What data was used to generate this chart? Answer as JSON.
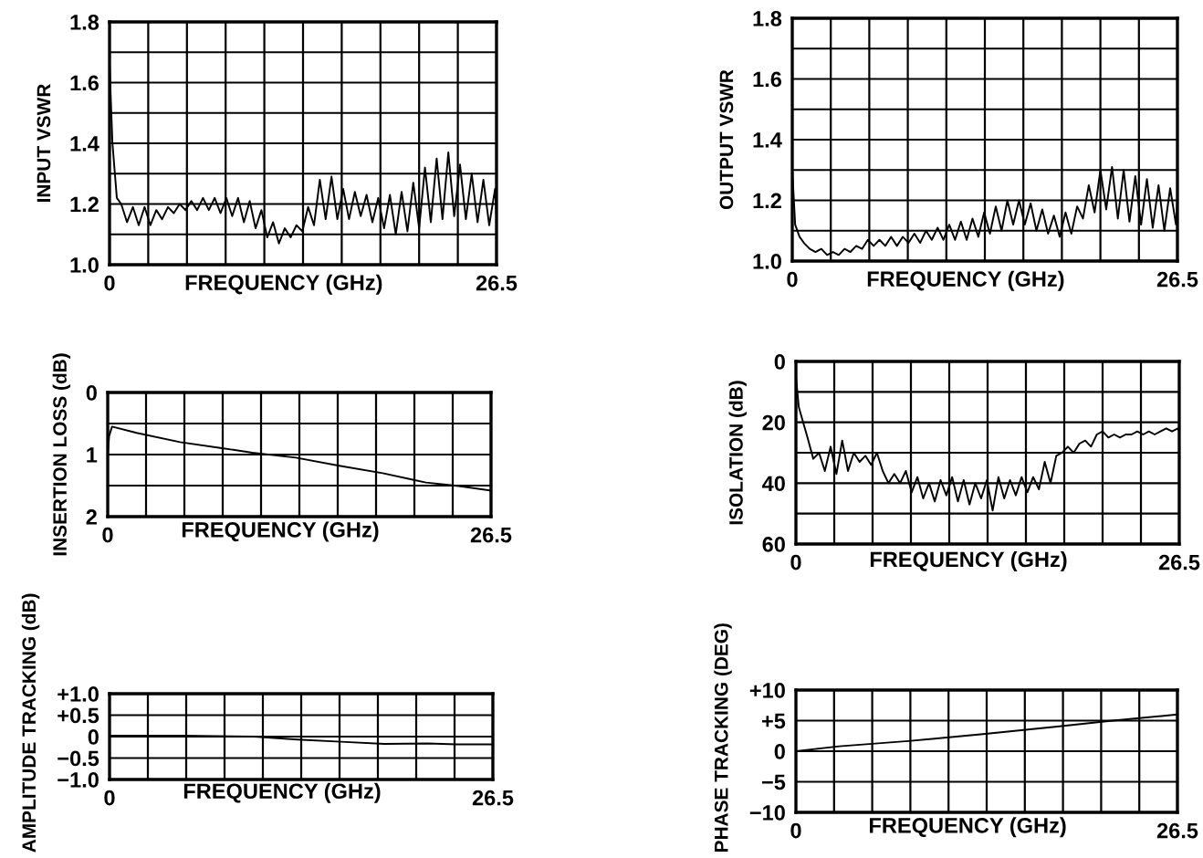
{
  "chart_data": [
    {
      "type": "line",
      "ylabel": "INPUT VSWR",
      "xlabel": "FREQUENCY (GHz)",
      "grid": true,
      "color": "#000000",
      "xlim": [
        0,
        26.5
      ],
      "ylim": [
        1.0,
        1.8
      ],
      "xticks": [
        0,
        {
          "value": 2.65,
          "label": null
        },
        {
          "value": 5.3,
          "label": null
        },
        {
          "value": 7.95,
          "label": null
        },
        {
          "value": 10.6,
          "label": null
        },
        {
          "value": 13.25,
          "label": null
        },
        {
          "value": 15.9,
          "label": null
        },
        {
          "value": 18.55,
          "label": null
        },
        {
          "value": 21.2,
          "label": null
        },
        {
          "value": 23.85,
          "label": null
        },
        26.5
      ],
      "yticks": [
        {
          "value": 1.0,
          "label": "1.0"
        },
        {
          "value": 1.1,
          "label": null
        },
        1.2,
        {
          "value": 1.3,
          "label": null
        },
        1.4,
        {
          "value": 1.5,
          "label": null
        },
        1.6,
        {
          "value": 1.7,
          "label": null
        },
        1.8
      ],
      "x": [
        0,
        0.2,
        0.5,
        0.8,
        1.2,
        1.6,
        2.0,
        2.4,
        2.8,
        3.2,
        3.6,
        4.0,
        4.4,
        4.8,
        5.2,
        5.6,
        6.0,
        6.4,
        6.8,
        7.2,
        7.6,
        8.0,
        8.4,
        8.8,
        9.2,
        9.6,
        10.0,
        10.4,
        10.8,
        11.2,
        11.6,
        12.0,
        12.4,
        12.8,
        13.2,
        13.6,
        14.0,
        14.4,
        14.8,
        15.2,
        15.6,
        16.0,
        16.4,
        16.8,
        17.2,
        17.6,
        18.0,
        18.4,
        18.8,
        19.2,
        19.6,
        20.0,
        20.4,
        20.8,
        21.2,
        21.6,
        22.0,
        22.4,
        22.8,
        23.2,
        23.6,
        24.0,
        24.4,
        24.8,
        25.2,
        25.6,
        26.0,
        26.4,
        26.5
      ],
      "values": [
        1.66,
        1.4,
        1.22,
        1.2,
        1.14,
        1.19,
        1.13,
        1.19,
        1.13,
        1.18,
        1.15,
        1.19,
        1.17,
        1.2,
        1.18,
        1.21,
        1.18,
        1.22,
        1.18,
        1.22,
        1.17,
        1.22,
        1.16,
        1.22,
        1.14,
        1.21,
        1.12,
        1.18,
        1.09,
        1.14,
        1.07,
        1.12,
        1.09,
        1.13,
        1.11,
        1.19,
        1.13,
        1.28,
        1.15,
        1.29,
        1.15,
        1.25,
        1.15,
        1.24,
        1.16,
        1.23,
        1.14,
        1.22,
        1.12,
        1.23,
        1.1,
        1.24,
        1.11,
        1.27,
        1.12,
        1.32,
        1.14,
        1.35,
        1.15,
        1.37,
        1.16,
        1.33,
        1.15,
        1.3,
        1.14,
        1.28,
        1.13,
        1.25,
        1.16
      ]
    },
    {
      "type": "line",
      "ylabel": "OUTPUT VSWR",
      "xlabel": "FREQUENCY (GHz)",
      "grid": true,
      "color": "#000000",
      "xlim": [
        0,
        26.5
      ],
      "ylim": [
        1.0,
        1.8
      ],
      "xticks": [
        0,
        {
          "value": 2.65,
          "label": null
        },
        {
          "value": 5.3,
          "label": null
        },
        {
          "value": 7.95,
          "label": null
        },
        {
          "value": 10.6,
          "label": null
        },
        {
          "value": 13.25,
          "label": null
        },
        {
          "value": 15.9,
          "label": null
        },
        {
          "value": 18.55,
          "label": null
        },
        {
          "value": 21.2,
          "label": null
        },
        {
          "value": 23.85,
          "label": null
        },
        26.5
      ],
      "yticks": [
        {
          "value": 1.0,
          "label": "1.0"
        },
        {
          "value": 1.1,
          "label": null
        },
        1.2,
        {
          "value": 1.3,
          "label": null
        },
        1.4,
        {
          "value": 1.5,
          "label": null
        },
        1.6,
        {
          "value": 1.7,
          "label": null
        },
        1.8
      ],
      "x": [
        0,
        0.2,
        0.5,
        0.8,
        1.2,
        1.6,
        2.0,
        2.4,
        2.8,
        3.2,
        3.6,
        4.0,
        4.4,
        4.8,
        5.2,
        5.6,
        6.0,
        6.4,
        6.8,
        7.2,
        7.6,
        8.0,
        8.4,
        8.8,
        9.2,
        9.6,
        10.0,
        10.4,
        10.8,
        11.2,
        11.6,
        12.0,
        12.4,
        12.8,
        13.2,
        13.6,
        14.0,
        14.4,
        14.8,
        15.2,
        15.6,
        16.0,
        16.4,
        16.8,
        17.2,
        17.6,
        18.0,
        18.4,
        18.8,
        19.2,
        19.6,
        20.0,
        20.4,
        20.8,
        21.2,
        21.6,
        22.0,
        22.4,
        22.8,
        23.2,
        23.6,
        24.0,
        24.4,
        24.8,
        25.2,
        25.6,
        26.0,
        26.4,
        26.5
      ],
      "values": [
        1.3,
        1.12,
        1.08,
        1.06,
        1.04,
        1.03,
        1.04,
        1.02,
        1.03,
        1.02,
        1.04,
        1.03,
        1.05,
        1.04,
        1.07,
        1.05,
        1.07,
        1.05,
        1.08,
        1.05,
        1.08,
        1.06,
        1.09,
        1.06,
        1.1,
        1.07,
        1.11,
        1.07,
        1.12,
        1.07,
        1.13,
        1.07,
        1.14,
        1.08,
        1.16,
        1.09,
        1.18,
        1.1,
        1.2,
        1.12,
        1.2,
        1.12,
        1.19,
        1.1,
        1.17,
        1.09,
        1.15,
        1.08,
        1.16,
        1.09,
        1.18,
        1.14,
        1.25,
        1.16,
        1.3,
        1.17,
        1.31,
        1.14,
        1.3,
        1.13,
        1.28,
        1.12,
        1.27,
        1.11,
        1.25,
        1.1,
        1.24,
        1.12,
        1.2
      ]
    },
    {
      "type": "line",
      "ylabel": "INSERTION LOSS (dB)",
      "xlabel": "FREQUENCY (GHz)",
      "grid": true,
      "color": "#000000",
      "xlim": [
        0,
        26.5
      ],
      "ylim": [
        2,
        0
      ],
      "xticks": [
        0,
        {
          "value": 2.65,
          "label": null
        },
        {
          "value": 5.3,
          "label": null
        },
        {
          "value": 7.95,
          "label": null
        },
        {
          "value": 10.6,
          "label": null
        },
        {
          "value": 13.25,
          "label": null
        },
        {
          "value": 15.9,
          "label": null
        },
        {
          "value": 18.55,
          "label": null
        },
        {
          "value": 21.2,
          "label": null
        },
        {
          "value": 23.85,
          "label": null
        },
        26.5
      ],
      "yticks": [
        0,
        {
          "value": 0.5,
          "label": null
        },
        1,
        {
          "value": 1.5,
          "label": null
        },
        2
      ],
      "x": [
        0,
        0.1,
        0.3,
        2,
        5,
        8,
        10,
        13,
        16,
        19,
        21,
        22,
        24,
        26.5
      ],
      "values": [
        1.0,
        0.7,
        0.55,
        0.65,
        0.8,
        0.9,
        0.97,
        1.05,
        1.18,
        1.3,
        1.4,
        1.45,
        1.5,
        1.58
      ]
    },
    {
      "type": "line",
      "ylabel": "ISOLATION (dB)",
      "xlabel": "FREQUENCY (GHz)",
      "grid": true,
      "color": "#000000",
      "xlim": [
        0,
        26.5
      ],
      "ylim": [
        60,
        0
      ],
      "xticks": [
        0,
        {
          "value": 2.65,
          "label": null
        },
        {
          "value": 5.3,
          "label": null
        },
        {
          "value": 7.95,
          "label": null
        },
        {
          "value": 10.6,
          "label": null
        },
        {
          "value": 13.25,
          "label": null
        },
        {
          "value": 15.9,
          "label": null
        },
        {
          "value": 18.55,
          "label": null
        },
        {
          "value": 21.2,
          "label": null
        },
        {
          "value": 23.85,
          "label": null
        },
        26.5
      ],
      "yticks": [
        0,
        {
          "value": 10,
          "label": null
        },
        20,
        {
          "value": 30,
          "label": null
        },
        40,
        {
          "value": 50,
          "label": null
        },
        60
      ],
      "x": [
        0,
        0.2,
        0.5,
        0.8,
        1.2,
        1.6,
        2.0,
        2.4,
        2.8,
        3.2,
        3.6,
        4.0,
        4.4,
        4.8,
        5.2,
        5.6,
        6.0,
        6.4,
        6.8,
        7.2,
        7.6,
        8.0,
        8.4,
        8.8,
        9.2,
        9.6,
        10.0,
        10.4,
        10.8,
        11.2,
        11.6,
        12.0,
        12.4,
        12.8,
        13.2,
        13.6,
        14.0,
        14.4,
        14.8,
        15.2,
        15.6,
        16.0,
        16.4,
        16.8,
        17.2,
        17.6,
        18.0,
        18.4,
        18.8,
        19.2,
        19.6,
        20.0,
        20.4,
        20.8,
        21.2,
        21.6,
        22.0,
        22.4,
        22.8,
        23.2,
        23.6,
        24.0,
        24.4,
        24.8,
        25.2,
        25.6,
        26.0,
        26.4,
        26.5
      ],
      "values": [
        5,
        15,
        20,
        25,
        32,
        30,
        36,
        28,
        37,
        26,
        36,
        30,
        33,
        31,
        34,
        30,
        36,
        40,
        37,
        40,
        36,
        43,
        38,
        45,
        40,
        46,
        39,
        44,
        38,
        46,
        39,
        47,
        40,
        45,
        39,
        49,
        38,
        45,
        39,
        44,
        38,
        43,
        38,
        42,
        33,
        40,
        31,
        30,
        28,
        30,
        27,
        26,
        28,
        24,
        23,
        25,
        24,
        25,
        24,
        24,
        23,
        24,
        23,
        24,
        23,
        22,
        23,
        22,
        23
      ]
    },
    {
      "type": "line",
      "ylabel": "AMPLITUDE TRACKING (dB)",
      "xlabel": "FREQUENCY (GHz)",
      "grid": true,
      "color": "#000000",
      "xlim": [
        0,
        26.5
      ],
      "ylim": [
        -1.0,
        1.0
      ],
      "xticks": [
        0,
        {
          "value": 2.65,
          "label": null
        },
        {
          "value": 5.3,
          "label": null
        },
        {
          "value": 7.95,
          "label": null
        },
        {
          "value": 10.6,
          "label": null
        },
        {
          "value": 13.25,
          "label": null
        },
        {
          "value": 15.9,
          "label": null
        },
        {
          "value": 18.55,
          "label": null
        },
        {
          "value": 21.2,
          "label": null
        },
        {
          "value": 23.85,
          "label": null
        },
        26.5
      ],
      "yticks": [
        {
          "value": -1.0,
          "label": "−1.0"
        },
        {
          "value": -0.5,
          "label": "−0.5"
        },
        0,
        {
          "value": 0.5,
          "label": "+0.5"
        },
        {
          "value": 1.0,
          "label": "+1.0"
        }
      ],
      "x": [
        0,
        5,
        10,
        13,
        16,
        19,
        22,
        24,
        26.5
      ],
      "values": [
        0.02,
        0.02,
        0.0,
        -0.07,
        -0.12,
        -0.17,
        -0.16,
        -0.18,
        -0.18
      ]
    },
    {
      "type": "line",
      "ylabel": "PHASE TRACKING (DEG)",
      "xlabel": "FREQUENCY (GHz)",
      "grid": true,
      "color": "#000000",
      "xlim": [
        0,
        26.5
      ],
      "ylim": [
        -10,
        10
      ],
      "xticks": [
        0,
        {
          "value": 2.65,
          "label": null
        },
        {
          "value": 5.3,
          "label": null
        },
        {
          "value": 7.95,
          "label": null
        },
        {
          "value": 10.6,
          "label": null
        },
        {
          "value": 13.25,
          "label": null
        },
        {
          "value": 15.9,
          "label": null
        },
        {
          "value": 18.55,
          "label": null
        },
        {
          "value": 21.2,
          "label": null
        },
        {
          "value": 23.85,
          "label": null
        },
        26.5
      ],
      "yticks": [
        {
          "value": -10,
          "label": "−10"
        },
        {
          "value": -5,
          "label": "−5"
        },
        0,
        {
          "value": 5,
          "label": "+5"
        },
        {
          "value": 10,
          "label": "+10"
        }
      ],
      "x": [
        0,
        3,
        8,
        13,
        18,
        22,
        26.5
      ],
      "values": [
        0,
        0.8,
        1.7,
        2.8,
        4,
        5,
        6
      ]
    }
  ]
}
